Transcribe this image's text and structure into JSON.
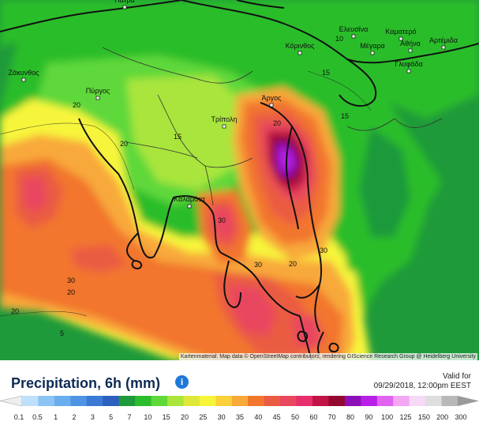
{
  "map": {
    "cities": [
      {
        "name": "Πάτρα",
        "id": "patra"
      },
      {
        "name": "Ελευσίνα",
        "id": "elefsina"
      },
      {
        "name": "Καματερό",
        "id": "kamatero"
      },
      {
        "name": "Αθήνα",
        "id": "athina"
      },
      {
        "name": "Αρτέμιδα",
        "id": "artemida"
      },
      {
        "name": "Κόρινθος",
        "id": "korinthos"
      },
      {
        "name": "Μέγαρα",
        "id": "megara"
      },
      {
        "name": "Γλυφάδα",
        "id": "glyfada"
      },
      {
        "name": "Ζάκυνθος",
        "id": "zakynthos"
      },
      {
        "name": "Πύργος",
        "id": "pyrgos"
      },
      {
        "name": "Άργος",
        "id": "argos"
      },
      {
        "name": "Τρίπολη",
        "id": "tripoli"
      },
      {
        "name": "Καλαμάτα",
        "id": "kalamata"
      }
    ],
    "contour_labels": [
      "10",
      "15",
      "20",
      "20",
      "15",
      "20",
      "30",
      "20",
      "5",
      "30",
      "20",
      "30",
      "30",
      "20",
      "15"
    ],
    "attribution": "Kartenmaterial: Map data © OpenStreetMap contributors, rendering GIScience Research Group @ Heidelberg University"
  },
  "header": {
    "title": "Precipitation, 6h (mm)",
    "info_icon": "i",
    "valid_label": "Valid for",
    "valid_time": "09/29/2018, 12:00pm EEST"
  },
  "legend": {
    "ticks": [
      "0.1",
      "0.5",
      "1",
      "2",
      "3",
      "5",
      "7",
      "10",
      "15",
      "20",
      "25",
      "30",
      "35",
      "40",
      "45",
      "50",
      "60",
      "70",
      "80",
      "90",
      "100",
      "125",
      "150",
      "200",
      "300"
    ],
    "colors": [
      "#bfe0fb",
      "#8cc4f3",
      "#6aaeee",
      "#4f94e4",
      "#3a79d4",
      "#2d5fc0",
      "#1f9a3a",
      "#2cbd2c",
      "#5fd83a",
      "#a9e53c",
      "#dfe83a",
      "#f7f53a",
      "#fbd03a",
      "#f8a93a",
      "#f2762e",
      "#ea5b43",
      "#e9475f",
      "#e62f6c",
      "#c01446",
      "#94082f",
      "#8c0fb8",
      "#b820e8",
      "#e163f2",
      "#f3a7f5",
      "#f6d9f6",
      "#dedede",
      "#b8b8b8"
    ],
    "under_color": "#eeeeee",
    "over_color": "#9a9a9a"
  },
  "colors": {
    "sea": "#1f9a3a",
    "title": "#0d2b54",
    "info": "#1e78d7"
  }
}
